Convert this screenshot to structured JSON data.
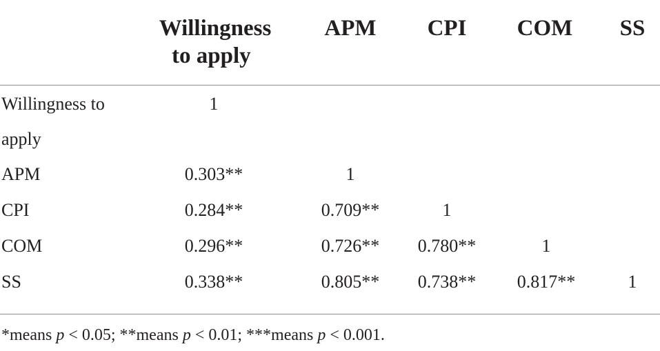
{
  "table": {
    "headers": {
      "col1_line1": "Willingness",
      "col1_line2": "to apply",
      "col2": "APM",
      "col3": "CPI",
      "col4": "COM",
      "col5": "SS"
    },
    "rows": [
      {
        "label_line1": "Willingness to",
        "label_line2": "apply",
        "values": [
          "1",
          "",
          "",
          "",
          ""
        ]
      },
      {
        "label": "APM",
        "values": [
          "0.303**",
          "1",
          "",
          "",
          ""
        ]
      },
      {
        "label": "CPI",
        "values": [
          "0.284**",
          "0.709**",
          "1",
          "",
          ""
        ]
      },
      {
        "label": "COM",
        "values": [
          "0.296**",
          "0.726**",
          "0.780**",
          "1",
          ""
        ]
      },
      {
        "label": "SS",
        "values": [
          "0.338**",
          "0.805**",
          "0.738**",
          "0.817**",
          "1"
        ]
      }
    ]
  },
  "footnote": {
    "part1": "*means ",
    "p1": "p",
    "part2": " < 0.05; **means ",
    "p2": "p",
    "part3": " < 0.01; ***means ",
    "p3": "p",
    "part4": " < 0.001."
  }
}
